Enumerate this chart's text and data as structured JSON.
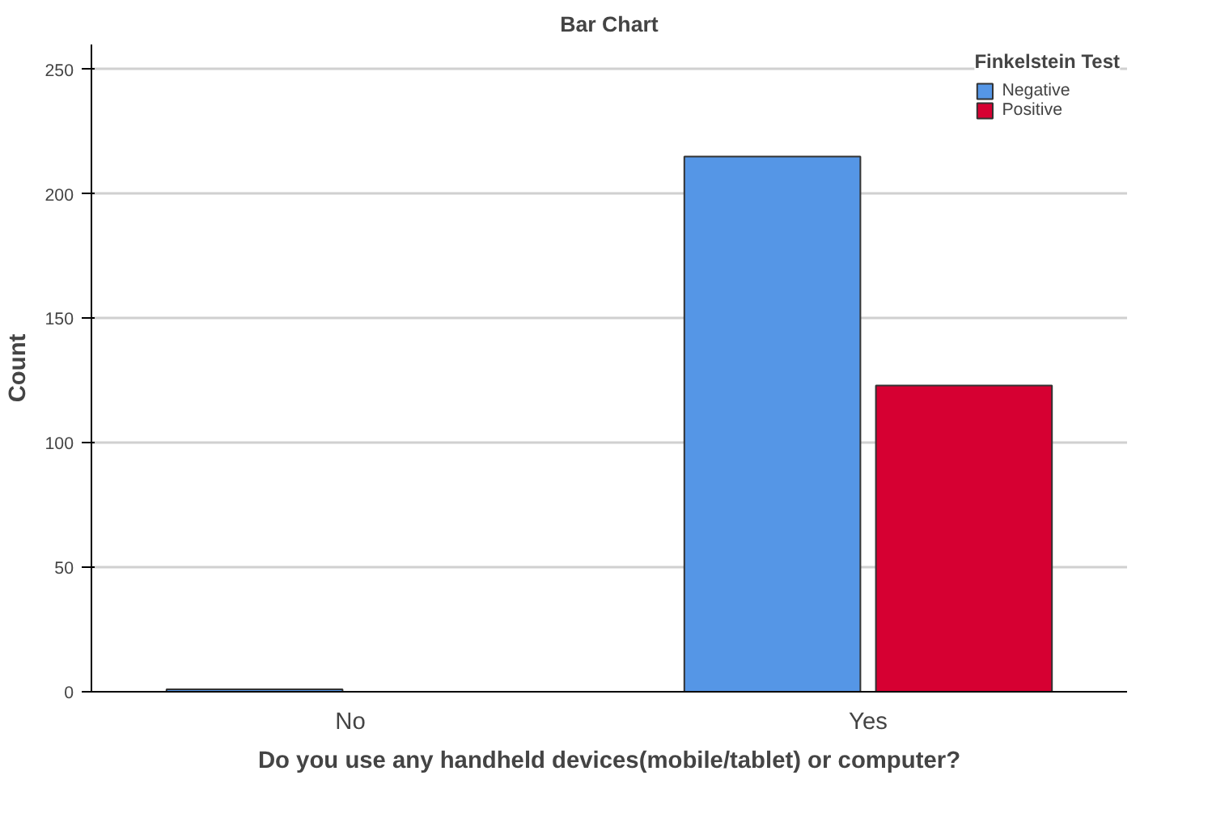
{
  "chart_data": {
    "type": "bar",
    "title": "Bar Chart",
    "xlabel": "Do you use any handheld devices(mobile/tablet) or computer?",
    "ylabel": "Count",
    "legend_title": "Finkelstein Test",
    "categories": [
      "No",
      "Yes"
    ],
    "series": [
      {
        "name": "Negative",
        "color": "#5596e6",
        "values": [
          1,
          215
        ]
      },
      {
        "name": "Positive",
        "color": "#d60032",
        "values": [
          null,
          123
        ]
      }
    ],
    "ylim": [
      0,
      260
    ],
    "yticks": [
      0,
      50,
      100,
      150,
      200,
      250
    ],
    "grid": "y",
    "legend": "top right"
  }
}
